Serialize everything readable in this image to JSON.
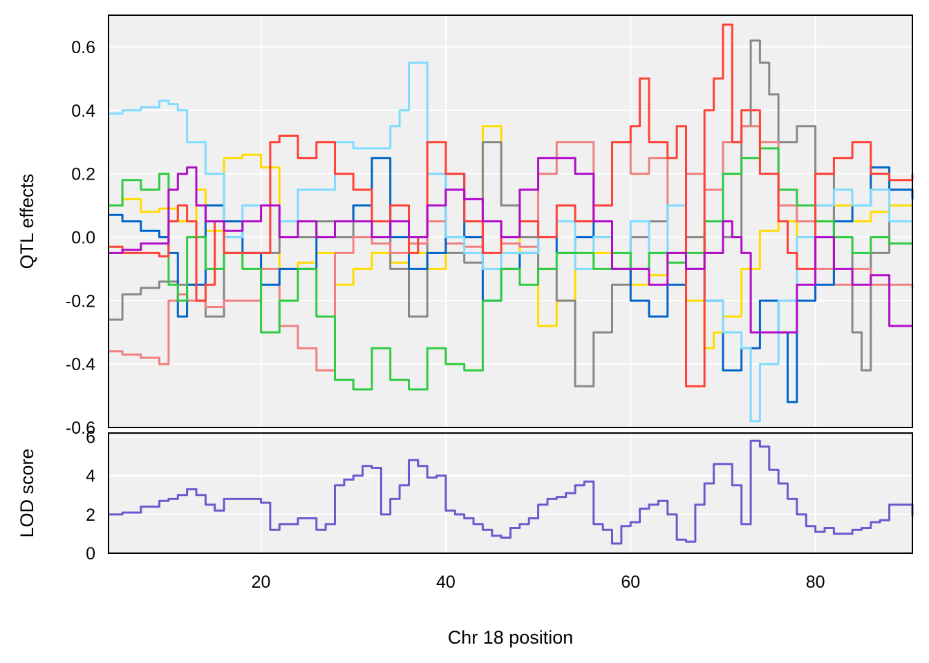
{
  "chart_data": {
    "type": "line",
    "xlabel": "Chr 18 position",
    "xlim": [
      3.5,
      90.5
    ],
    "x_ticks": [
      20,
      40,
      60,
      80
    ],
    "grid": true,
    "panels": [
      {
        "id": "effects",
        "ylabel": "QTL effects",
        "ylim": [
          -0.6,
          0.7
        ],
        "y_ticks": [
          0.6,
          0.4,
          0.2,
          0.0,
          -0.2,
          -0.4,
          -0.6
        ],
        "y_tick_labels": [
          "0.6",
          "0.4",
          "0.2",
          "0.0",
          "-0.2",
          "-0.4",
          "-0.6"
        ],
        "series": [
          {
            "color": "#FFDC00",
            "x": [
              3.5,
              5,
              7,
              9,
              11,
              13,
              14,
              16,
              18,
              20,
              22,
              24,
              26,
              28,
              30,
              32,
              34,
              36,
              38,
              40,
              42,
              44,
              46,
              48,
              50,
              52,
              54,
              56,
              58,
              60,
              62,
              64,
              66,
              68,
              69,
              70,
              72,
              74,
              76,
              78,
              80,
              82,
              84,
              86,
              88,
              90.5
            ],
            "y": [
              0.1,
              0.12,
              0.08,
              0.09,
              0.05,
              0.15,
              0.02,
              0.25,
              0.26,
              0.22,
              -0.1,
              -0.08,
              -0.05,
              -0.15,
              -0.1,
              -0.05,
              -0.08,
              -0.05,
              -0.1,
              0.0,
              0.05,
              0.35,
              0.1,
              -0.05,
              -0.28,
              -0.2,
              0.0,
              -0.05,
              -0.1,
              -0.15,
              -0.12,
              -0.05,
              -0.2,
              -0.35,
              -0.3,
              -0.25,
              -0.1,
              0.02,
              0.05,
              0.0,
              0.05,
              0.1,
              0.05,
              0.08,
              0.1,
              0.1
            ]
          },
          {
            "color": "#888888",
            "x": [
              3.5,
              5,
              7,
              9,
              11,
              13,
              14,
              16,
              18,
              20,
              22,
              24,
              26,
              28,
              30,
              32,
              34,
              36,
              38,
              40,
              42,
              44,
              46,
              48,
              50,
              52,
              54,
              56,
              58,
              60,
              62,
              64,
              66,
              68,
              70,
              72,
              73,
              74,
              75,
              76,
              78,
              80,
              82,
              84,
              85,
              86,
              88,
              90.5
            ],
            "y": [
              -0.26,
              -0.18,
              -0.16,
              -0.14,
              -0.15,
              -0.2,
              -0.25,
              -0.05,
              -0.05,
              -0.05,
              0.05,
              0.0,
              0.05,
              0.0,
              0.1,
              0.05,
              -0.1,
              -0.25,
              0.1,
              -0.05,
              -0.08,
              0.3,
              0.1,
              0.0,
              -0.1,
              -0.2,
              -0.47,
              -0.3,
              -0.15,
              0.0,
              0.05,
              0.1,
              0.0,
              -0.05,
              0.0,
              0.35,
              0.62,
              0.55,
              0.45,
              0.3,
              0.35,
              0.2,
              0.0,
              -0.3,
              -0.42,
              -0.05,
              0.05,
              0.05
            ]
          },
          {
            "color": "#F08080",
            "x": [
              3.5,
              5,
              7,
              9,
              10,
              11,
              12,
              14,
              16,
              18,
              20,
              22,
              24,
              26,
              28,
              30,
              32,
              34,
              36,
              38,
              40,
              42,
              44,
              46,
              48,
              50,
              52,
              54,
              56,
              58,
              60,
              62,
              64,
              66,
              68,
              70,
              72,
              74,
              76,
              78,
              80,
              82,
              84,
              86,
              88,
              90.5
            ],
            "y": [
              -0.36,
              -0.37,
              -0.38,
              -0.4,
              -0.2,
              -0.18,
              -0.2,
              -0.22,
              -0.2,
              -0.2,
              -0.1,
              -0.28,
              -0.35,
              -0.42,
              -0.05,
              0.0,
              -0.02,
              -0.05,
              -0.02,
              0.05,
              -0.02,
              -0.03,
              0.05,
              -0.02,
              -0.03,
              0.2,
              0.3,
              0.3,
              0.1,
              0.3,
              0.2,
              0.25,
              0.1,
              0.2,
              0.15,
              0.3,
              0.35,
              0.3,
              0.1,
              0.05,
              -0.1,
              -0.15,
              -0.1,
              -0.15,
              -0.15,
              -0.16
            ]
          },
          {
            "color": "#0064C9",
            "x": [
              3.5,
              5,
              7,
              9,
              10,
              11,
              12,
              14,
              16,
              18,
              20,
              22,
              24,
              26,
              28,
              30,
              32,
              34,
              36,
              38,
              40,
              42,
              44,
              46,
              48,
              50,
              52,
              54,
              56,
              58,
              60,
              62,
              64,
              66,
              68,
              70,
              72,
              74,
              76,
              77,
              78,
              80,
              82,
              84,
              86,
              88,
              90.5
            ],
            "y": [
              0.07,
              0.05,
              0.02,
              0.0,
              -0.05,
              -0.25,
              -0.15,
              0.1,
              0.05,
              -0.05,
              -0.15,
              -0.1,
              -0.1,
              0.0,
              0.05,
              0.1,
              0.25,
              0.0,
              -0.1,
              -0.05,
              0.2,
              0.0,
              -0.2,
              -0.1,
              -0.05,
              0.0,
              -0.05,
              0.0,
              0.05,
              -0.1,
              -0.2,
              -0.25,
              -0.15,
              -0.1,
              -0.2,
              -0.42,
              -0.35,
              -0.2,
              -0.3,
              -0.52,
              -0.2,
              -0.15,
              0.05,
              0.1,
              0.22,
              0.15,
              0.12
            ]
          },
          {
            "color": "#7FDBFF",
            "x": [
              3.5,
              5,
              7,
              9,
              10,
              11,
              12,
              14,
              16,
              18,
              20,
              22,
              24,
              26,
              28,
              30,
              32,
              34,
              35,
              36,
              37,
              38,
              40,
              42,
              44,
              46,
              48,
              50,
              52,
              54,
              56,
              58,
              60,
              62,
              64,
              66,
              68,
              70,
              72,
              73,
              74,
              76,
              78,
              80,
              82,
              84,
              86,
              88,
              90.5
            ],
            "y": [
              0.39,
              0.4,
              0.41,
              0.43,
              0.42,
              0.4,
              0.3,
              0.2,
              0.0,
              0.1,
              0.1,
              0.05,
              0.15,
              0.15,
              0.3,
              0.28,
              0.28,
              0.35,
              0.4,
              0.55,
              0.55,
              0.2,
              0.0,
              -0.05,
              -0.1,
              -0.05,
              -0.05,
              0.0,
              0.05,
              -0.1,
              0.0,
              -0.1,
              0.05,
              -0.05,
              0.1,
              -0.1,
              -0.2,
              -0.3,
              -0.35,
              -0.58,
              -0.4,
              -0.2,
              0.0,
              0.1,
              0.15,
              0.1,
              0.15,
              0.05,
              0.05
            ]
          },
          {
            "color": "#2ECC40",
            "x": [
              3.5,
              5,
              7,
              9,
              10,
              11,
              12,
              14,
              16,
              18,
              20,
              22,
              24,
              26,
              28,
              30,
              32,
              34,
              36,
              38,
              40,
              42,
              44,
              46,
              48,
              50,
              52,
              54,
              56,
              58,
              60,
              62,
              64,
              66,
              68,
              70,
              72,
              74,
              76,
              78,
              80,
              82,
              84,
              86,
              88,
              90.5
            ],
            "y": [
              0.1,
              0.18,
              0.15,
              0.2,
              -0.15,
              -0.2,
              0.0,
              -0.1,
              -0.05,
              -0.1,
              -0.3,
              -0.2,
              -0.1,
              -0.25,
              -0.45,
              -0.48,
              -0.35,
              -0.45,
              -0.48,
              -0.35,
              -0.4,
              -0.42,
              -0.2,
              -0.1,
              -0.15,
              -0.1,
              -0.05,
              -0.05,
              -0.1,
              -0.05,
              -0.1,
              -0.05,
              -0.08,
              -0.05,
              0.05,
              0.2,
              0.25,
              0.28,
              0.15,
              0.1,
              0.05,
              0.0,
              -0.05,
              0.0,
              -0.02,
              -0.02
            ]
          },
          {
            "color": "#FF4136",
            "x": [
              3.5,
              5,
              7,
              9,
              10,
              11,
              12,
              13,
              14,
              15,
              16,
              18,
              20,
              21,
              22,
              24,
              26,
              28,
              30,
              32,
              34,
              36,
              37,
              38,
              40,
              42,
              44,
              46,
              48,
              50,
              52,
              54,
              56,
              58,
              60,
              61,
              62,
              64,
              65,
              66,
              68,
              69,
              70,
              71,
              72,
              74,
              76,
              77,
              78,
              80,
              82,
              84,
              86,
              88,
              90.5
            ],
            "y": [
              -0.03,
              -0.05,
              -0.05,
              -0.06,
              0.05,
              0.1,
              0.05,
              -0.2,
              -0.15,
              0.05,
              -0.05,
              -0.05,
              -0.05,
              0.3,
              0.32,
              0.25,
              0.3,
              0.2,
              0.15,
              0.05,
              0.1,
              -0.05,
              0.0,
              0.3,
              0.2,
              0.05,
              -0.05,
              0.0,
              0.05,
              0.0,
              0.1,
              0.05,
              0.1,
              0.3,
              0.35,
              0.5,
              0.3,
              0.25,
              0.35,
              -0.47,
              0.4,
              0.5,
              0.67,
              0.3,
              0.4,
              0.2,
              0.05,
              -0.05,
              -0.1,
              0.2,
              0.25,
              0.3,
              0.2,
              0.18,
              0.2
            ]
          },
          {
            "color": "#B10DC9",
            "x": [
              3.5,
              5,
              7,
              9,
              10,
              11,
              12,
              13,
              14,
              16,
              18,
              20,
              22,
              24,
              26,
              28,
              30,
              32,
              34,
              36,
              38,
              40,
              42,
              44,
              46,
              48,
              50,
              52,
              54,
              56,
              58,
              60,
              62,
              64,
              66,
              68,
              70,
              71,
              72,
              73,
              74,
              76,
              78,
              80,
              82,
              84,
              86,
              88,
              90.5
            ],
            "y": [
              -0.05,
              -0.04,
              -0.02,
              -0.02,
              0.15,
              0.2,
              0.22,
              0.1,
              0.05,
              0.02,
              0.05,
              0.1,
              0.0,
              0.05,
              0.0,
              0.05,
              0.05,
              0.0,
              0.05,
              0.0,
              0.1,
              0.15,
              0.12,
              0.05,
              0.0,
              0.15,
              0.25,
              0.25,
              0.2,
              0.05,
              -0.1,
              -0.1,
              -0.15,
              -0.05,
              -0.1,
              -0.05,
              0.05,
              0.0,
              -0.05,
              -0.3,
              -0.3,
              -0.3,
              -0.15,
              0.0,
              -0.1,
              -0.15,
              -0.12,
              -0.28,
              -0.28
            ]
          }
        ]
      },
      {
        "id": "lod",
        "ylabel": "LOD score",
        "ylim": [
          0,
          6.2
        ],
        "y_ticks": [
          0,
          2,
          4,
          6
        ],
        "y_tick_labels": [
          "0",
          "2",
          "4",
          "6"
        ],
        "series": [
          {
            "color": "#6A5ACD",
            "x": [
              3.5,
              5,
              7,
              9,
              10,
              11,
              12,
              13,
              14,
              15,
              16,
              18,
              20,
              21,
              22,
              24,
              26,
              27,
              28,
              29,
              30,
              31,
              32,
              33,
              34,
              35,
              36,
              37,
              38,
              39,
              40,
              41,
              42,
              43,
              44,
              45,
              46,
              47,
              48,
              49,
              50,
              51,
              52,
              53,
              54,
              55,
              56,
              57,
              58,
              59,
              60,
              61,
              62,
              63,
              64,
              65,
              66,
              67,
              68,
              69,
              70,
              71,
              72,
              73,
              74,
              75,
              76,
              77,
              78,
              79,
              80,
              81,
              82,
              83,
              84,
              85,
              86,
              87,
              88,
              90.5
            ],
            "y": [
              2.0,
              2.1,
              2.4,
              2.7,
              2.8,
              3.0,
              3.3,
              3.0,
              2.5,
              2.2,
              2.8,
              2.8,
              2.6,
              1.2,
              1.5,
              1.8,
              1.2,
              1.5,
              3.5,
              3.8,
              4.0,
              4.5,
              4.4,
              2.0,
              2.8,
              3.5,
              4.8,
              4.5,
              3.9,
              4.0,
              2.2,
              2.0,
              1.8,
              1.5,
              1.2,
              0.9,
              0.8,
              1.3,
              1.5,
              1.8,
              2.5,
              2.8,
              2.9,
              3.1,
              3.5,
              3.7,
              1.5,
              1.2,
              0.5,
              1.4,
              1.6,
              2.3,
              2.5,
              2.7,
              2.0,
              0.7,
              0.6,
              2.5,
              3.6,
              4.6,
              4.6,
              3.5,
              1.5,
              5.8,
              5.5,
              4.3,
              3.6,
              2.8,
              2.0,
              1.4,
              1.1,
              1.3,
              1.0,
              1.0,
              1.2,
              1.3,
              1.6,
              1.7,
              2.5,
              1.9
            ]
          }
        ]
      }
    ]
  }
}
